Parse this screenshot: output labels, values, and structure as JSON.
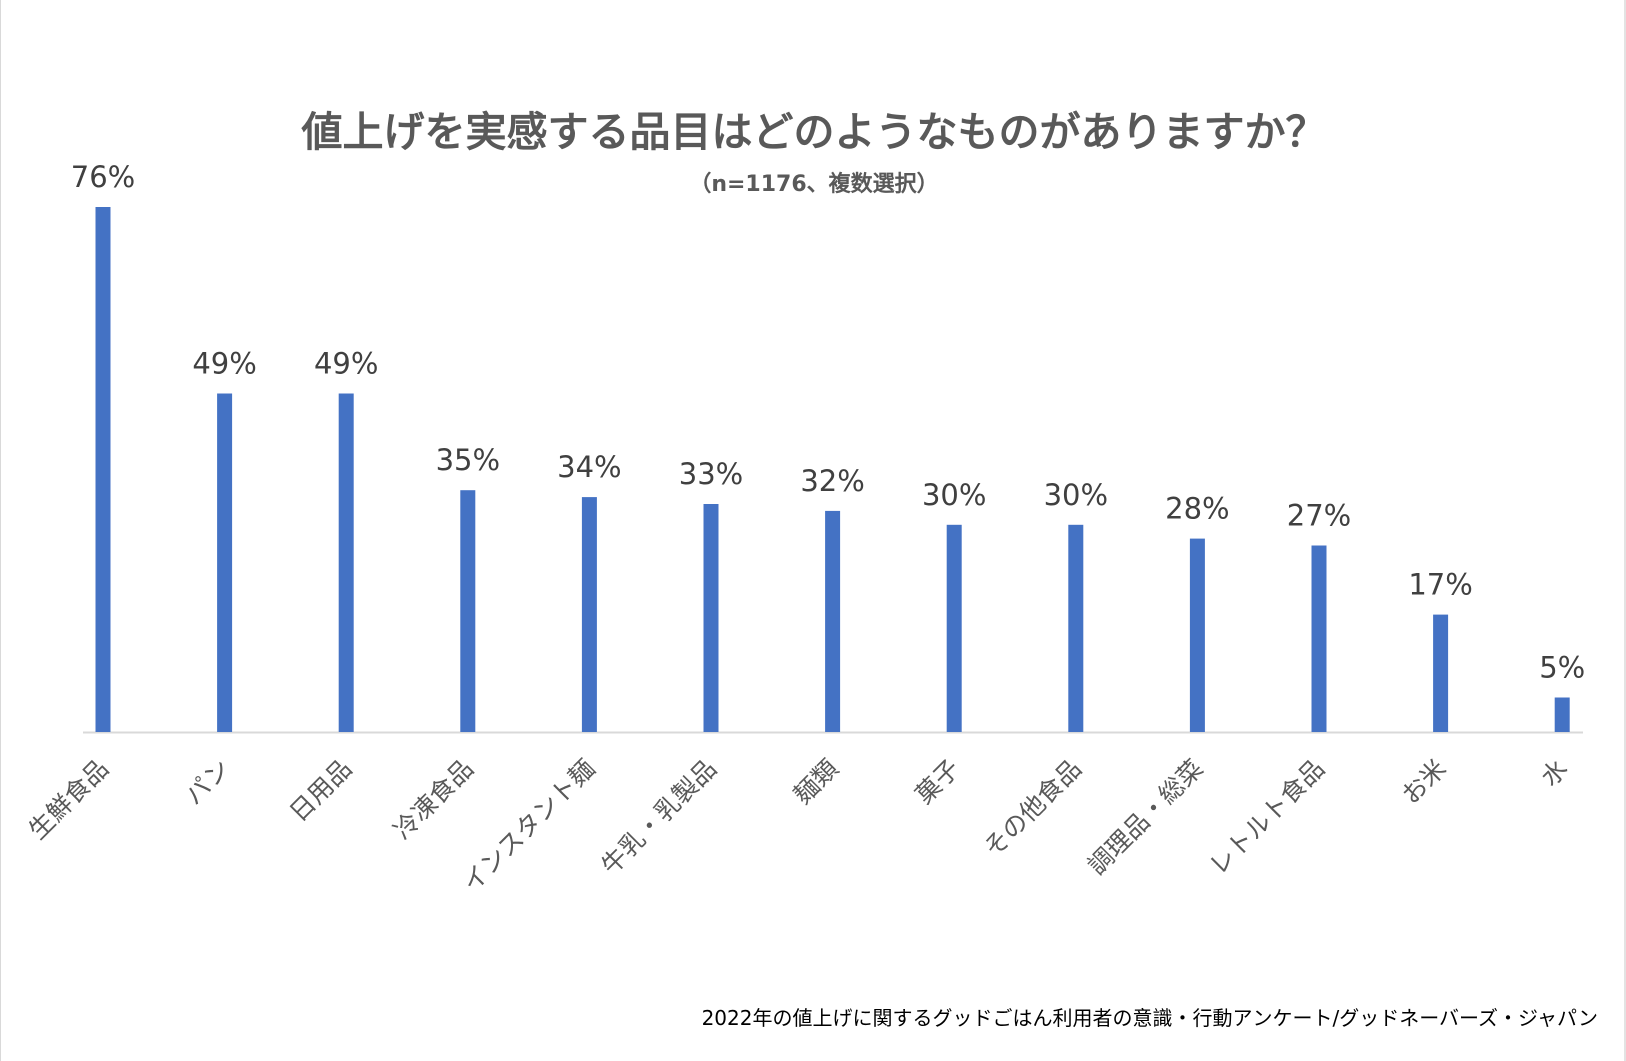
{
  "chart_data": {
    "type": "bar",
    "title": "値上げを実感する品目はどのようなものがありますか？",
    "subtitle": "（n=1176、複数選択）",
    "categories": [
      "生鮮食品",
      "パン",
      "日用品",
      "冷凍食品",
      "インスタント麺",
      "牛乳・乳製品",
      "麺類",
      "菓子",
      "その他食品",
      "調理品・総菜",
      "レトルト食品",
      "お米",
      "水"
    ],
    "values": [
      76,
      49,
      49,
      35,
      34,
      33,
      32,
      30,
      30,
      28,
      27,
      17,
      5
    ],
    "value_labels": [
      "76%",
      "49%",
      "49%",
      "35%",
      "34%",
      "33%",
      "32%",
      "30%",
      "30%",
      "28%",
      "27%",
      "17%",
      "5%"
    ],
    "xlabel": "",
    "ylabel": "",
    "ylim": [
      0,
      80
    ],
    "grid": false,
    "legend": "none",
    "bar_color": "#4472C4"
  },
  "footer": {
    "source": "2022年の値上げに関するグッドごはん利用者の意識・行動アンケート/グッドネーバーズ・ジャパン"
  }
}
